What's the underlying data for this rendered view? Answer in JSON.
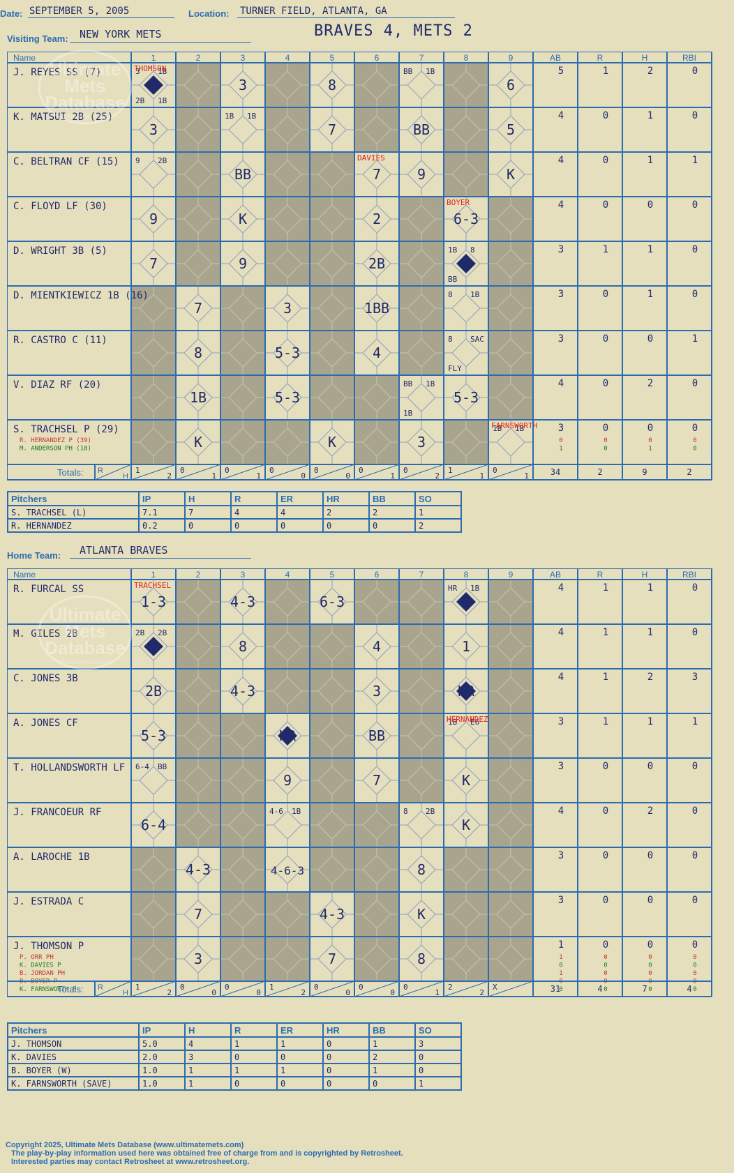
{
  "header": {
    "date_label": "Date:",
    "date": "SEPTEMBER 5, 2005",
    "location_label": "Location:",
    "location": "TURNER FIELD, ATLANTA, GA",
    "visiting_label": "Visiting Team:",
    "visiting_team": "NEW YORK METS",
    "score_title": "BRAVES 4, METS 2",
    "home_label": "Home Team:",
    "home_team": "ATLANTA BRAVES"
  },
  "watermark": {
    "line1": "Ultimate",
    "line2": "Mets",
    "line3": "Database",
    "url": "ultimatemets.com"
  },
  "columns": {
    "name": "Name",
    "innings": [
      "1",
      "2",
      "3",
      "4",
      "5",
      "6",
      "7",
      "8",
      "9"
    ],
    "stats": [
      "AB",
      "R",
      "H",
      "RBI"
    ],
    "totals_label": "Totals:",
    "r_label": "R",
    "h_label": "H"
  },
  "visitors": {
    "batters": [
      {
        "name": "J. REYES SS (7)",
        "ab": "5",
        "r": "1",
        "h": "2",
        "rbi": "0",
        "cells": [
          [
            "3 1B 2B 1B",
            "run"
          ],
          [
            "",
            ""
          ],
          [
            "3",
            ""
          ],
          [
            "",
            ""
          ],
          [
            "8",
            ""
          ],
          [
            "",
            ""
          ],
          [
            "BB 1B",
            ""
          ],
          [
            "",
            ""
          ],
          [
            "6",
            ""
          ]
        ]
      },
      {
        "name": "K. MATSUI 2B (25)",
        "ab": "4",
        "r": "0",
        "h": "1",
        "rbi": "0",
        "cells": [
          [
            "3",
            ""
          ],
          [
            "",
            ""
          ],
          [
            "1B 1B",
            ""
          ],
          [
            "",
            ""
          ],
          [
            "7",
            ""
          ],
          [
            "",
            ""
          ],
          [
            "BB",
            ""
          ],
          [
            "",
            ""
          ],
          [
            "5",
            ""
          ]
        ]
      },
      {
        "name": "C. BELTRAN CF (15)",
        "ab": "4",
        "r": "0",
        "h": "1",
        "rbi": "1",
        "cells": [
          [
            "9 2B",
            ""
          ],
          [
            "",
            ""
          ],
          [
            "BB",
            ""
          ],
          [
            "",
            ""
          ],
          [
            "",
            ""
          ],
          [
            "7",
            ""
          ],
          [
            "9",
            ""
          ],
          [
            "",
            ""
          ],
          [
            "K",
            ""
          ]
        ]
      },
      {
        "name": "C. FLOYD LF (30)",
        "ab": "4",
        "r": "0",
        "h": "0",
        "rbi": "0",
        "cells": [
          [
            "9",
            ""
          ],
          [
            "",
            ""
          ],
          [
            "K",
            ""
          ],
          [
            "",
            ""
          ],
          [
            "",
            ""
          ],
          [
            "2",
            ""
          ],
          [
            "",
            ""
          ],
          [
            "6-3",
            ""
          ],
          [
            "",
            ""
          ]
        ]
      },
      {
        "name": "D. WRIGHT 3B (5)",
        "ab": "3",
        "r": "1",
        "h": "1",
        "rbi": "0",
        "cells": [
          [
            "7",
            ""
          ],
          [
            "",
            ""
          ],
          [
            "9",
            ""
          ],
          [
            "",
            ""
          ],
          [
            "",
            ""
          ],
          [
            "2B",
            ""
          ],
          [
            "",
            ""
          ],
          [
            "1B 8 BB",
            "run"
          ],
          [
            "",
            ""
          ]
        ]
      },
      {
        "name": "D. MIENTKIEWICZ 1B (16)",
        "ab": "3",
        "r": "0",
        "h": "1",
        "rbi": "0",
        "cells": [
          [
            "",
            ""
          ],
          [
            "7",
            ""
          ],
          [
            "",
            ""
          ],
          [
            "3",
            ""
          ],
          [
            "",
            ""
          ],
          [
            "1BB",
            ""
          ],
          [
            "",
            ""
          ],
          [
            "8 1B",
            ""
          ],
          [
            "",
            ""
          ]
        ]
      },
      {
        "name": "R. CASTRO C (11)",
        "ab": "3",
        "r": "0",
        "h": "0",
        "rbi": "1",
        "cells": [
          [
            "",
            ""
          ],
          [
            "8",
            ""
          ],
          [
            "",
            ""
          ],
          [
            "5-3",
            ""
          ],
          [
            "",
            ""
          ],
          [
            "4",
            ""
          ],
          [
            "",
            ""
          ],
          [
            "8 SAC FLY",
            ""
          ],
          [
            "",
            ""
          ]
        ]
      },
      {
        "name": "V. DIAZ RF (20)",
        "ab": "4",
        "r": "0",
        "h": "2",
        "rbi": "0",
        "cells": [
          [
            "",
            ""
          ],
          [
            "1B",
            ""
          ],
          [
            "",
            ""
          ],
          [
            "5-3",
            ""
          ],
          [
            "",
            ""
          ],
          [
            "",
            ""
          ],
          [
            "BB 1B 1B",
            ""
          ],
          [
            "5-3",
            ""
          ],
          [
            "",
            ""
          ]
        ]
      },
      {
        "name": "S. TRACHSEL P (29)",
        "ab": "3",
        "r": "0",
        "h": "0",
        "rbi": "0",
        "subs": [
          {
            "name": "R. HERNANDEZ P (39)",
            "ab": "0",
            "r": "0",
            "h": "0",
            "rbi": "0",
            "color": "#c0392b"
          },
          {
            "name": "M. ANDERSON PH (18)",
            "ab": "1",
            "r": "0",
            "h": "1",
            "rbi": "0",
            "color": "#1e7b1e"
          }
        ],
        "cells": [
          [
            "",
            ""
          ],
          [
            "K",
            ""
          ],
          [
            "",
            ""
          ],
          [
            "",
            ""
          ],
          [
            "K",
            ""
          ],
          [
            "",
            ""
          ],
          [
            "3",
            ""
          ],
          [
            "",
            ""
          ],
          [
            "1B 1B",
            ""
          ]
        ]
      }
    ],
    "pitcher_change_labels": [
      {
        "inning": 1,
        "row": 0,
        "text": "THOMSON"
      },
      {
        "inning": 6,
        "row": 2,
        "text": "DAVIES"
      },
      {
        "inning": 8,
        "row": 3,
        "text": "BOYER"
      },
      {
        "inning": 9,
        "row": 8,
        "text": "FARNSWORTH"
      }
    ],
    "inning_totals": [
      [
        "1",
        "2"
      ],
      [
        "0",
        "1"
      ],
      [
        "0",
        "1"
      ],
      [
        "0",
        "0"
      ],
      [
        "0",
        "0"
      ],
      [
        "0",
        "1"
      ],
      [
        "0",
        "2"
      ],
      [
        "1",
        "1"
      ],
      [
        "0",
        "1"
      ]
    ],
    "totals": {
      "ab": "34",
      "r": "2",
      "h": "9",
      "rbi": "2"
    },
    "pitchers": {
      "headers": [
        "Pitchers",
        "IP",
        "H",
        "R",
        "ER",
        "HR",
        "BB",
        "SO"
      ],
      "rows": [
        [
          "S. TRACHSEL (L)",
          "7.1",
          "7",
          "4",
          "4",
          "2",
          "2",
          "1"
        ],
        [
          "R. HERNANDEZ",
          "0.2",
          "0",
          "0",
          "0",
          "0",
          "0",
          "2"
        ]
      ]
    }
  },
  "home": {
    "batters": [
      {
        "name": "R. FURCAL SS",
        "ab": "4",
        "r": "1",
        "h": "1",
        "rbi": "0",
        "cells": [
          [
            "1-3",
            ""
          ],
          [
            "",
            ""
          ],
          [
            "4-3",
            ""
          ],
          [
            "",
            ""
          ],
          [
            "6-3",
            ""
          ],
          [
            "",
            ""
          ],
          [
            "",
            ""
          ],
          [
            "HR 1B",
            "run"
          ],
          [
            "",
            ""
          ]
        ]
      },
      {
        "name": "M. GILES 2B",
        "ab": "4",
        "r": "1",
        "h": "1",
        "rbi": "0",
        "cells": [
          [
            "2B 2B",
            "run"
          ],
          [
            "",
            ""
          ],
          [
            "8",
            ""
          ],
          [
            "",
            ""
          ],
          [
            "",
            ""
          ],
          [
            "4",
            ""
          ],
          [
            "",
            ""
          ],
          [
            "1",
            ""
          ],
          [
            "",
            ""
          ]
        ]
      },
      {
        "name": "C. JONES 3B",
        "ab": "4",
        "r": "1",
        "h": "2",
        "rbi": "3",
        "cells": [
          [
            "2B",
            ""
          ],
          [
            "",
            ""
          ],
          [
            "4-3",
            ""
          ],
          [
            "",
            ""
          ],
          [
            "",
            ""
          ],
          [
            "3",
            ""
          ],
          [
            "",
            ""
          ],
          [
            "HR",
            "run"
          ],
          [
            "",
            ""
          ]
        ]
      },
      {
        "name": "A. JONES CF",
        "ab": "3",
        "r": "1",
        "h": "1",
        "rbi": "1",
        "cells": [
          [
            "5-3",
            ""
          ],
          [
            "",
            ""
          ],
          [
            "",
            ""
          ],
          [
            "HR",
            "run"
          ],
          [
            "",
            ""
          ],
          [
            "BB",
            ""
          ],
          [
            "",
            ""
          ],
          [
            "1B E6",
            ""
          ],
          [
            "",
            ""
          ]
        ]
      },
      {
        "name": "T. HOLLANDSWORTH LF",
        "ab": "3",
        "r": "0",
        "h": "0",
        "rbi": "0",
        "cells": [
          [
            "6-4 BB",
            ""
          ],
          [
            "",
            ""
          ],
          [
            "",
            ""
          ],
          [
            "9",
            ""
          ],
          [
            "",
            ""
          ],
          [
            "7",
            ""
          ],
          [
            "",
            ""
          ],
          [
            "K",
            ""
          ],
          [
            "",
            ""
          ]
        ]
      },
      {
        "name": "J. FRANCOEUR RF",
        "ab": "4",
        "r": "0",
        "h": "2",
        "rbi": "0",
        "cells": [
          [
            "6-4",
            ""
          ],
          [
            "",
            ""
          ],
          [
            "",
            ""
          ],
          [
            "4-6 1B",
            ""
          ],
          [
            "",
            ""
          ],
          [
            "",
            ""
          ],
          [
            "8 2B",
            ""
          ],
          [
            "K",
            ""
          ],
          [
            "",
            ""
          ]
        ]
      },
      {
        "name": "A. LAROCHE 1B",
        "ab": "3",
        "r": "0",
        "h": "0",
        "rbi": "0",
        "cells": [
          [
            "",
            ""
          ],
          [
            "4-3",
            ""
          ],
          [
            "",
            ""
          ],
          [
            "4-6-3",
            ""
          ],
          [
            "",
            ""
          ],
          [
            "",
            ""
          ],
          [
            "8",
            ""
          ],
          [
            "",
            ""
          ],
          [
            "",
            ""
          ]
        ]
      },
      {
        "name": "J. ESTRADA C",
        "ab": "3",
        "r": "0",
        "h": "0",
        "rbi": "0",
        "cells": [
          [
            "",
            ""
          ],
          [
            "7",
            ""
          ],
          [
            "",
            ""
          ],
          [
            "",
            ""
          ],
          [
            "4-3",
            ""
          ],
          [
            "",
            ""
          ],
          [
            "K",
            ""
          ],
          [
            "",
            ""
          ],
          [
            "",
            ""
          ]
        ]
      },
      {
        "name": "J. THOMSON P",
        "ab": "1",
        "r": "0",
        "h": "0",
        "rbi": "0",
        "subs": [
          {
            "name": "P. ORR PH",
            "ab": "1",
            "r": "0",
            "h": "0",
            "rbi": "0",
            "color": "#c0392b"
          },
          {
            "name": "K. DAVIES P",
            "ab": "0",
            "r": "0",
            "h": "0",
            "rbi": "0",
            "color": "#1e7b1e"
          },
          {
            "name": "B. JORDAN PH",
            "ab": "1",
            "r": "0",
            "h": "0",
            "rbi": "0",
            "color": "#c0392b"
          },
          {
            "name": "B. BOYER P",
            "ab": "0",
            "r": "0",
            "h": "0",
            "rbi": "0",
            "color": "#a0522d"
          },
          {
            "name": "K. FARNSWORTH P",
            "ab": "0",
            "r": "0",
            "h": "0",
            "rbi": "0",
            "color": "#1e7b1e"
          }
        ],
        "cells": [
          [
            "",
            ""
          ],
          [
            "3",
            ""
          ],
          [
            "",
            ""
          ],
          [
            "",
            ""
          ],
          [
            "7",
            ""
          ],
          [
            "",
            ""
          ],
          [
            "8",
            ""
          ],
          [
            "",
            ""
          ],
          [
            "",
            ""
          ]
        ]
      }
    ],
    "pitcher_change_labels": [
      {
        "inning": 1,
        "row": 0,
        "text": "TRACHSEL"
      },
      {
        "inning": 8,
        "row": 3,
        "text": "HERNANDEZ"
      }
    ],
    "inning_totals": [
      [
        "1",
        "2"
      ],
      [
        "0",
        "0"
      ],
      [
        "0",
        "0"
      ],
      [
        "1",
        "2"
      ],
      [
        "0",
        "0"
      ],
      [
        "0",
        "0"
      ],
      [
        "0",
        "1"
      ],
      [
        "2",
        "2"
      ],
      [
        "X",
        ""
      ]
    ],
    "totals": {
      "ab": "31",
      "r": "4",
      "h": "7",
      "rbi": "4"
    },
    "pitchers": {
      "headers": [
        "Pitchers",
        "IP",
        "H",
        "R",
        "ER",
        "HR",
        "BB",
        "SO"
      ],
      "rows": [
        [
          "J. THOMSON",
          "5.0",
          "4",
          "1",
          "1",
          "0",
          "1",
          "3"
        ],
        [
          "K. DAVIES",
          "2.0",
          "3",
          "0",
          "0",
          "0",
          "2",
          "0"
        ],
        [
          "B. BOYER (W)",
          "1.0",
          "1",
          "1",
          "1",
          "0",
          "1",
          "0"
        ],
        [
          "K. FARNSWORTH (SAVE)",
          "1.0",
          "1",
          "0",
          "0",
          "0",
          "0",
          "1"
        ]
      ]
    }
  },
  "footer": {
    "line1": "Copyright 2025, Ultimate Mets Database (www.ultimatemets.com)",
    "line2": "The play-by-play information used here was obtained free of charge from and is copyrighted by Retrosheet.",
    "line3": "Interested parties may contact Retrosheet at www.retrosheet.org."
  },
  "colors": {
    "blue": "#2b6cb0",
    "ink": "#1f2a6b",
    "shade": "#a9a48e",
    "paper": "#e6dfbd",
    "red": "#e0251b"
  }
}
